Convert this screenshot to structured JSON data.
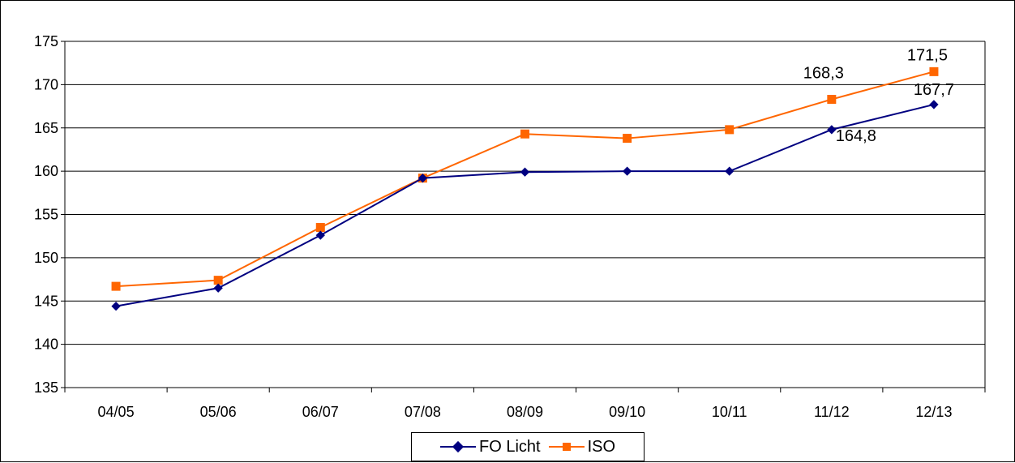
{
  "chart_data": {
    "type": "line",
    "categories": [
      "04/05",
      "05/06",
      "06/07",
      "07/08",
      "08/09",
      "09/10",
      "10/11",
      "11/12",
      "12/13"
    ],
    "ylim": [
      135,
      175
    ],
    "yticks": [
      "135",
      "140",
      "145",
      "150",
      "155",
      "160",
      "165",
      "170",
      "175"
    ],
    "grid": true,
    "legend_position": "bottom",
    "series": [
      {
        "name": "FO Licht",
        "color": "#000080",
        "marker": "diamond",
        "values": [
          144.4,
          146.5,
          152.6,
          159.2,
          159.9,
          160.0,
          160.0,
          164.8,
          167.7
        ]
      },
      {
        "name": "ISO",
        "color": "#ff6600",
        "marker": "square",
        "values": [
          146.7,
          147.4,
          153.5,
          159.2,
          164.3,
          163.8,
          164.8,
          168.3,
          171.5
        ]
      }
    ],
    "data_labels": [
      {
        "series": 0,
        "index": 7,
        "text": "164,8"
      },
      {
        "series": 0,
        "index": 8,
        "text": "167,7"
      },
      {
        "series": 1,
        "index": 7,
        "text": "168,3"
      },
      {
        "series": 1,
        "index": 8,
        "text": "171,5"
      }
    ]
  }
}
